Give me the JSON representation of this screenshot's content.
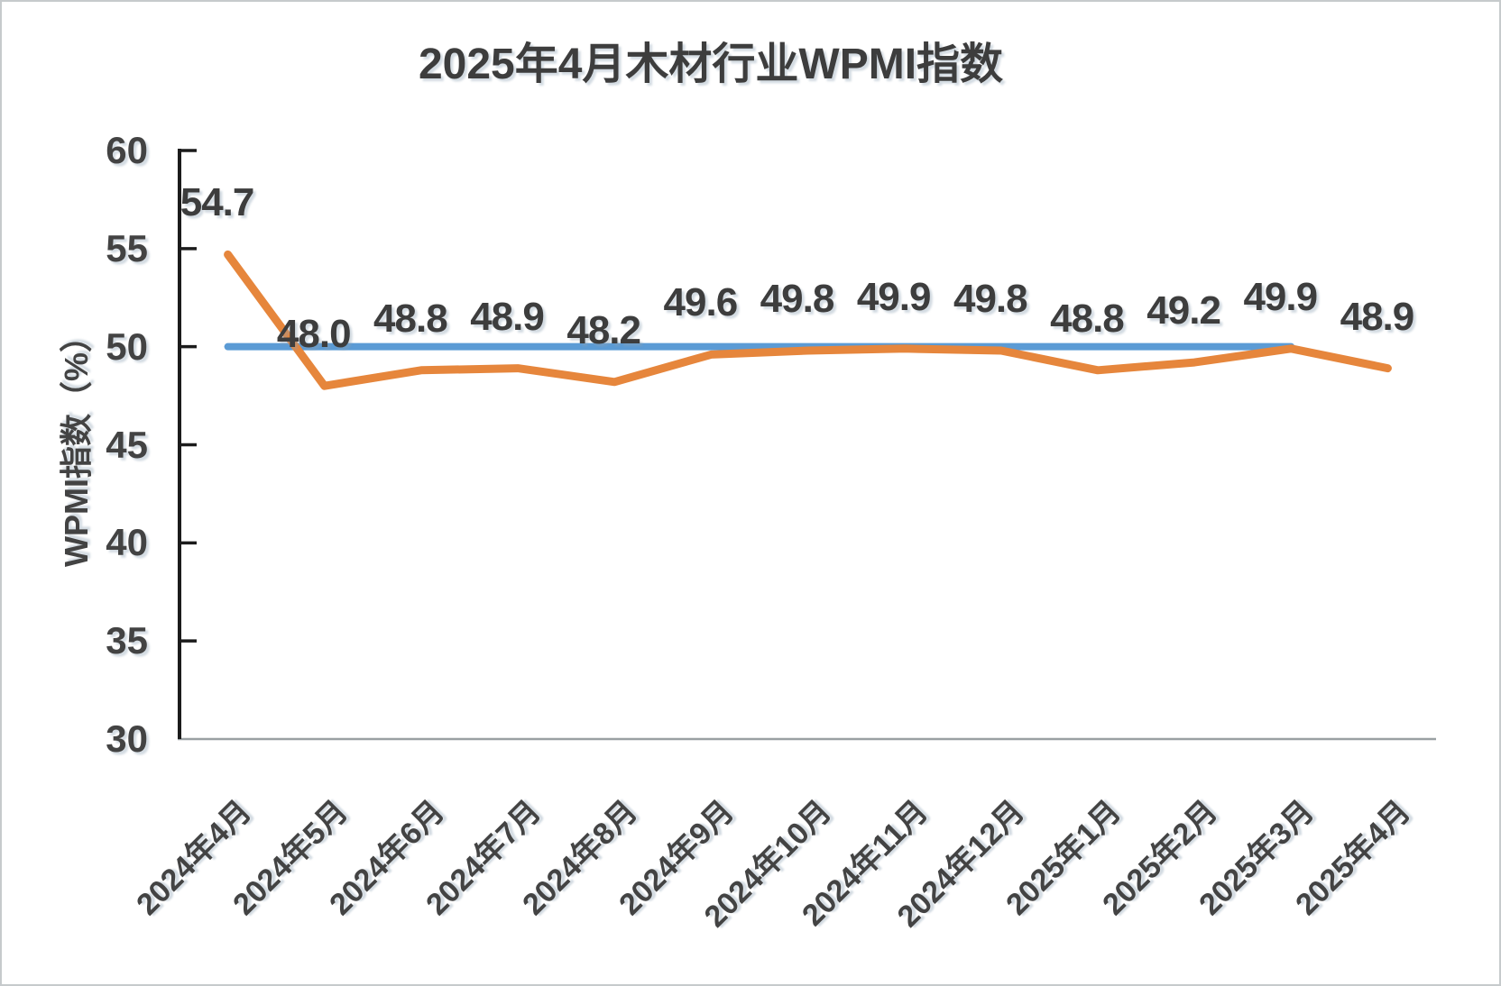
{
  "title": "2025年4月木材行业WPMI指数",
  "colors": {
    "series_orange": "#E6863C",
    "reference_blue": "#5B9BD5",
    "axis_black": "#1b1b1b",
    "axis_gray": "#9aa0a3",
    "text": "#404040"
  },
  "chart_data": {
    "type": "line",
    "title": "2025年4月木材行业WPMI指数",
    "xlabel": "",
    "ylabel": "WPMI指数（%）",
    "ylim": [
      30,
      60
    ],
    "yticks": [
      60,
      55,
      50,
      45,
      40,
      35,
      30
    ],
    "grid": false,
    "legend": "none",
    "categories": [
      "2024年4月",
      "2024年5月",
      "2024年6月",
      "2024年7月",
      "2024年8月",
      "2024年9月",
      "2024年10月",
      "2024年11月",
      "2024年12月",
      "2025年1月",
      "2025年2月",
      "2025年3月",
      "2025年4月"
    ],
    "series": [
      {
        "name": "WPMI指数",
        "color": "#E6863C",
        "values": [
          54.7,
          48.0,
          48.8,
          48.9,
          48.2,
          49.6,
          49.8,
          49.9,
          49.8,
          48.8,
          49.2,
          49.9,
          48.9
        ],
        "labels": [
          "54.7",
          "48.0",
          "48.8",
          "48.9",
          "48.2",
          "49.6",
          "49.8",
          "49.9",
          "49.8",
          "48.8",
          "49.2",
          "49.9",
          "48.9"
        ]
      }
    ],
    "reference_line": {
      "value": 50,
      "color": "#5B9BD5",
      "start_index": 0,
      "end_index": 11
    }
  }
}
